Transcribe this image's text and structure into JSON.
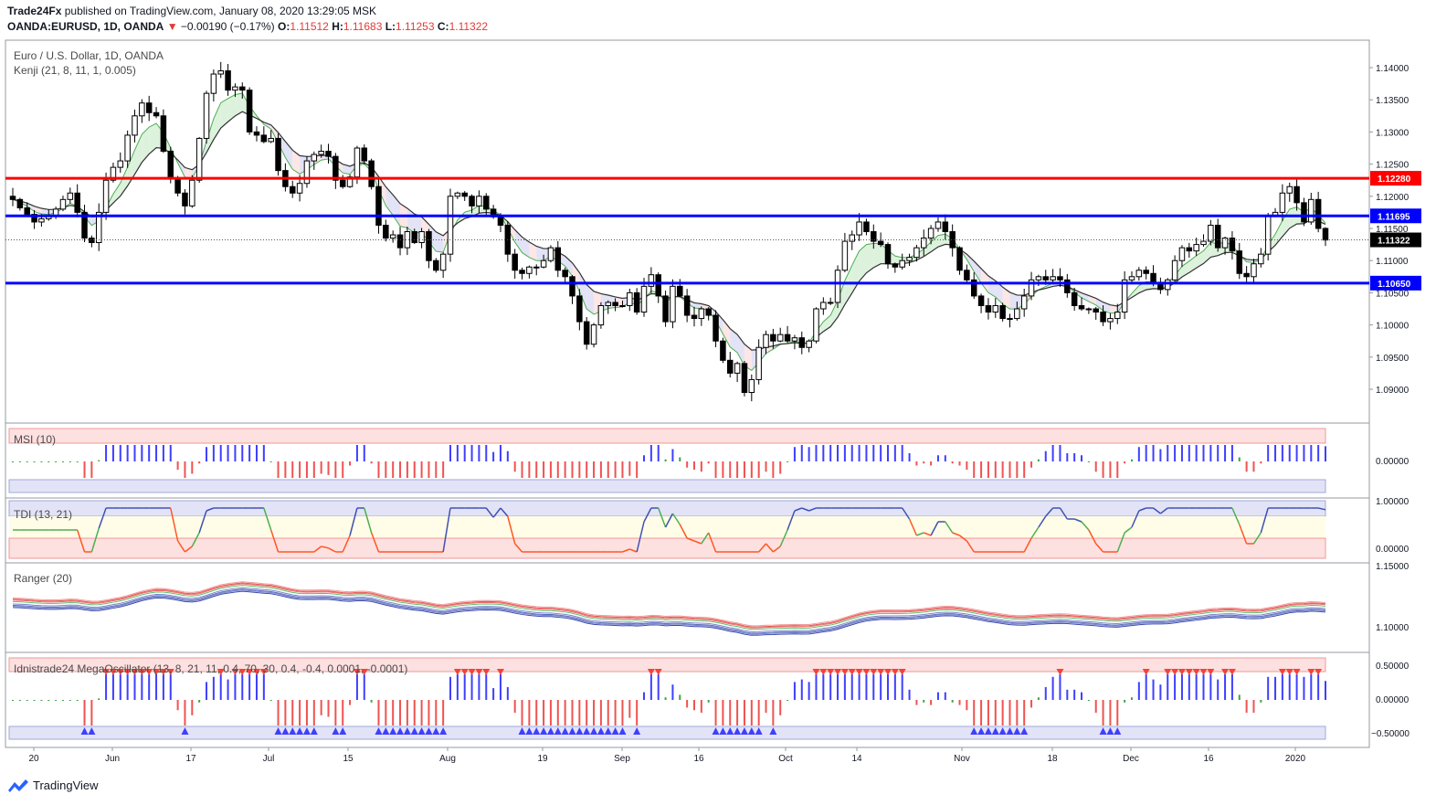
{
  "header": {
    "author": "Trade24Fx",
    "published_text": "published on TradingView.com, January 08, 2020 13:29:05 MSK",
    "symbol": "OANDA:EURUSD, 1D, OANDA",
    "change_arrow": "▼",
    "change": "−0.00190 (−0.17%)",
    "o_label": "O:",
    "o_value": "1.11512",
    "h_label": "H:",
    "h_value": "1.11683",
    "l_label": "L:",
    "l_value": "1.11253",
    "c_label": "C:",
    "c_value": "1.11322"
  },
  "legends": {
    "main_title": "Euro / U.S. Dollar, 1D, OANDA",
    "kenji": "Kenji (21, 8, 11, 1, 0.005)",
    "msi": "MSI (10)",
    "tdi": "TDI (13, 21)",
    "ranger": "Ranger (20)",
    "mega": "Idnistrade24 MegaOscillator (13, 8, 21, 11, 0.4, 70, 30, 0.4, -0.4, 0.0001, -0.0001)"
  },
  "footer": {
    "brand": "TradingView"
  },
  "colors": {
    "up": "#ffffff",
    "down": "#000000",
    "red_line": "#ff0000",
    "blue_line": "#0000ff",
    "sell": "#ef5350",
    "buy": "#5c6bc0"
  },
  "chart_data": {
    "type": "candlestick",
    "title": "Euro / U.S. Dollar, 1D, OANDA",
    "ylim": [
      1.0855,
      1.1432
    ],
    "y_ticks": [
      "1.14000",
      "1.13500",
      "1.13000",
      "1.12500",
      "1.12000",
      "1.11500",
      "1.11000",
      "1.10500",
      "1.10000",
      "1.09500",
      "1.09000"
    ],
    "x_ticks": [
      "20",
      "Jun",
      "17",
      "Jul",
      "15",
      "Aug",
      "19",
      "Sep",
      "16",
      "Oct",
      "14",
      "Nov",
      "18",
      "Dec",
      "16",
      "2020"
    ],
    "horizontal_lines": [
      {
        "label": "1.12280",
        "value": 1.1228,
        "color": "#ff0000"
      },
      {
        "label": "1.11695",
        "value": 1.11695,
        "color": "#0000ff"
      },
      {
        "label": "1.10650",
        "value": 1.1065,
        "color": "#0000ff"
      }
    ],
    "last_price": {
      "label": "1.11322",
      "value": 1.11322
    },
    "close": [
      1.1195,
      1.1182,
      1.1172,
      1.116,
      1.1165,
      1.117,
      1.118,
      1.1195,
      1.1205,
      1.1175,
      1.1135,
      1.1128,
      1.1175,
      1.1225,
      1.1245,
      1.1255,
      1.1295,
      1.1325,
      1.1345,
      1.133,
      1.1325,
      1.127,
      1.1228,
      1.1205,
      1.1185,
      1.1225,
      1.129,
      1.136,
      1.139,
      1.1395,
      1.1365,
      1.137,
      1.1365,
      1.13,
      1.1295,
      1.1285,
      1.129,
      1.124,
      1.1215,
      1.1205,
      1.122,
      1.1255,
      1.1265,
      1.127,
      1.1262,
      1.1225,
      1.1215,
      1.123,
      1.1275,
      1.1255,
      1.1215,
      1.1155,
      1.1135,
      1.114,
      1.112,
      1.1145,
      1.1128,
      1.1145,
      1.11,
      1.1085,
      1.111,
      1.12,
      1.1205,
      1.12,
      1.1185,
      1.12,
      1.118,
      1.1168,
      1.1155,
      1.111,
      1.1085,
      1.108,
      1.109,
      1.109,
      1.11,
      1.112,
      1.1085,
      1.1075,
      1.1045,
      1.1005,
      1.097,
      1.1,
      1.103,
      1.1035,
      1.103,
      1.103,
      1.105,
      1.102,
      1.106,
      1.1078,
      1.1045,
      1.1005,
      1.106,
      1.1045,
      1.1015,
      1.101,
      1.1025,
      1.1015,
      1.0975,
      1.0945,
      1.0925,
      1.094,
      1.0895,
      1.0915,
      1.0965,
      1.0985,
      1.0975,
      1.0985,
      1.0975,
      1.098,
      1.0965,
      1.0975,
      1.1025,
      1.1035,
      1.1035,
      1.1085,
      1.113,
      1.114,
      1.116,
      1.1145,
      1.113,
      1.1125,
      1.1095,
      1.109,
      1.11,
      1.1105,
      1.112,
      1.1135,
      1.115,
      1.116,
      1.1145,
      1.112,
      1.1085,
      1.107,
      1.1045,
      1.103,
      1.102,
      1.103,
      1.101,
      1.101,
      1.1025,
      1.1045,
      1.107,
      1.1075,
      1.107,
      1.1075,
      1.107,
      1.105,
      1.103,
      1.1025,
      1.1025,
      1.102,
      1.1005,
      1.101,
      1.102,
      1.107,
      1.1075,
      1.1085,
      1.108,
      1.1065,
      1.1055,
      1.107,
      1.11,
      1.112,
      1.1115,
      1.1125,
      1.113,
      1.1155,
      1.112,
      1.1135,
      1.1115,
      1.108,
      1.1075,
      1.1095,
      1.111,
      1.117,
      1.1175,
      1.1205,
      1.1215,
      1.119,
      1.116,
      1.1195,
      1.115,
      1.1132
    ]
  }
}
